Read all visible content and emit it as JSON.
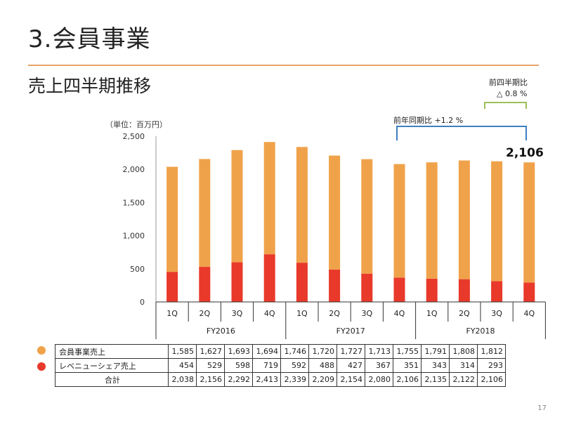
{
  "slide": {
    "title": "3.会員事業",
    "subtitle": "売上四半期推移",
    "unit_label": "（単位：百万円）",
    "page_number": "17"
  },
  "annotations": {
    "yoy_label": "前年同期比 +1.2 %",
    "qoq_line1": "前四半期比",
    "qoq_line2": "△ 0.8 %",
    "last_total": "2,106"
  },
  "colors": {
    "membership": "#f0a24a",
    "revenue_share": "#e8392a",
    "yoy_bracket": "#3d7fc0",
    "qoq_bracket": "#9bc05a",
    "rule": "#e9a366"
  },
  "chart_data": {
    "type": "bar",
    "stacked": true,
    "quarters": [
      "1Q",
      "2Q",
      "3Q",
      "4Q",
      "1Q",
      "2Q",
      "3Q",
      "4Q",
      "1Q",
      "2Q",
      "3Q",
      "4Q"
    ],
    "fiscal_years": [
      "FY2016",
      "FY2017",
      "FY2018"
    ],
    "y_ticks": [
      "0",
      "500",
      "1,000",
      "1,500",
      "2,000",
      "2,500"
    ],
    "ylim": [
      0,
      2500
    ],
    "series": [
      {
        "name": "会員事業売上",
        "values": [
          1585,
          1627,
          1693,
          1694,
          1746,
          1720,
          1727,
          1713,
          1755,
          1791,
          1808,
          1812
        ]
      },
      {
        "name": "レベニューシェア売上",
        "values": [
          454,
          529,
          598,
          719,
          592,
          488,
          427,
          367,
          351,
          343,
          314,
          293
        ]
      }
    ],
    "totals": [
      2038,
      2156,
      2292,
      2413,
      2339,
      2209,
      2154,
      2080,
      2106,
      2135,
      2122,
      2106
    ]
  },
  "table": {
    "rows": [
      {
        "label": "会員事業売上",
        "values": [
          "1,585",
          "1,627",
          "1,693",
          "1,694",
          "1,746",
          "1,720",
          "1,727",
          "1,713",
          "1,755",
          "1,791",
          "1,808",
          "1,812"
        ]
      },
      {
        "label": "レベニューシェア売上",
        "values": [
          "454",
          "529",
          "598",
          "719",
          "592",
          "488",
          "427",
          "367",
          "351",
          "343",
          "314",
          "293"
        ]
      },
      {
        "label": "合計",
        "values": [
          "2,038",
          "2,156",
          "2,292",
          "2,413",
          "2,339",
          "2,209",
          "2,154",
          "2,080",
          "2,106",
          "2,135",
          "2,122",
          "2,106"
        ]
      }
    ]
  }
}
